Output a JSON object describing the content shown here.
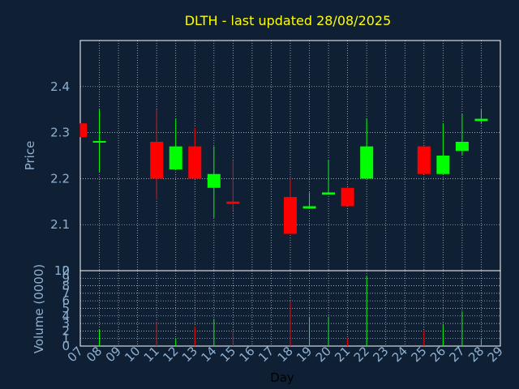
{
  "chart_data": {
    "type": "candlestick",
    "title": "DLTH - last updated 28/08/2025",
    "xlabel": "Day",
    "x_ticks": [
      "07",
      "08",
      "09",
      "10",
      "11",
      "12",
      "13",
      "14",
      "15",
      "16",
      "17",
      "18",
      "19",
      "20",
      "21",
      "22",
      "23",
      "24",
      "25",
      "26",
      "27",
      "28",
      "29"
    ],
    "price": {
      "ylabel": "Price",
      "ylim": [
        2.0,
        2.5
      ],
      "y_ticks": [
        "2",
        "2.1",
        "2.2",
        "2.3",
        "2.4"
      ],
      "candles": [
        {
          "day": "07",
          "open": 2.32,
          "high": 2.32,
          "low": 2.29,
          "close": 2.29
        },
        {
          "day": "08",
          "open": 2.28,
          "high": 2.35,
          "low": 2.215,
          "close": 2.28
        },
        {
          "day": "11",
          "open": 2.28,
          "high": 2.35,
          "low": 2.155,
          "close": 2.2
        },
        {
          "day": "12",
          "open": 2.22,
          "high": 2.33,
          "low": 2.22,
          "close": 2.27
        },
        {
          "day": "13",
          "open": 2.27,
          "high": 2.31,
          "low": 2.2,
          "close": 2.2
        },
        {
          "day": "14",
          "open": 2.18,
          "high": 2.27,
          "low": 2.115,
          "close": 2.21
        },
        {
          "day": "15",
          "open": 2.15,
          "high": 2.24,
          "low": 2.13,
          "close": 2.145
        },
        {
          "day": "18",
          "open": 2.16,
          "high": 2.2,
          "low": 2.08,
          "close": 2.08
        },
        {
          "day": "19",
          "open": 2.135,
          "high": 2.17,
          "low": 2.135,
          "close": 2.14
        },
        {
          "day": "20",
          "open": 2.165,
          "high": 2.24,
          "low": 2.165,
          "close": 2.17
        },
        {
          "day": "21",
          "open": 2.18,
          "high": 2.18,
          "low": 2.14,
          "close": 2.14
        },
        {
          "day": "22",
          "open": 2.2,
          "high": 2.33,
          "low": 2.2,
          "close": 2.27
        },
        {
          "day": "25",
          "open": 2.27,
          "high": 2.27,
          "low": 2.21,
          "close": 2.21
        },
        {
          "day": "26",
          "open": 2.21,
          "high": 2.32,
          "low": 2.21,
          "close": 2.25
        },
        {
          "day": "27",
          "open": 2.26,
          "high": 2.34,
          "low": 2.25,
          "close": 2.28
        },
        {
          "day": "28",
          "open": 2.325,
          "high": 2.35,
          "low": 2.32,
          "close": 2.33
        }
      ]
    },
    "volume": {
      "ylabel": "Volume (0000)",
      "ylim": [
        0,
        10
      ],
      "y_ticks": [
        "0",
        "1",
        "2",
        "3",
        "4",
        "5",
        "6",
        "7",
        "8",
        "9",
        "10"
      ],
      "bars": [
        {
          "day": "08",
          "value": 2.2,
          "direction": "up"
        },
        {
          "day": "11",
          "value": 3.2,
          "direction": "down"
        },
        {
          "day": "12",
          "value": 1.0,
          "direction": "up"
        },
        {
          "day": "13",
          "value": 2.6,
          "direction": "down"
        },
        {
          "day": "14",
          "value": 3.6,
          "direction": "up"
        },
        {
          "day": "15",
          "value": 2.0,
          "direction": "down"
        },
        {
          "day": "18",
          "value": 5.9,
          "direction": "down"
        },
        {
          "day": "19",
          "value": 3.8,
          "direction": "up"
        },
        {
          "day": "20",
          "value": 3.9,
          "direction": "up"
        },
        {
          "day": "21",
          "value": 1.0,
          "direction": "down"
        },
        {
          "day": "22",
          "value": 9.3,
          "direction": "up"
        },
        {
          "day": "25",
          "value": 2.1,
          "direction": "down"
        },
        {
          "day": "26",
          "value": 2.8,
          "direction": "up"
        },
        {
          "day": "27",
          "value": 4.6,
          "direction": "up"
        },
        {
          "day": "28",
          "value": 1.0,
          "direction": "up"
        }
      ]
    },
    "grid": true,
    "colors": {
      "background": "#0f2034",
      "plot_bg": "#0f2034",
      "up": "#00ff00",
      "down": "#ff0000",
      "title": "#ffff00",
      "axis_text": "#8fb0d0",
      "xlabel_text": "#000000",
      "frame": "#ffffff",
      "grid": "#ffffff"
    }
  }
}
